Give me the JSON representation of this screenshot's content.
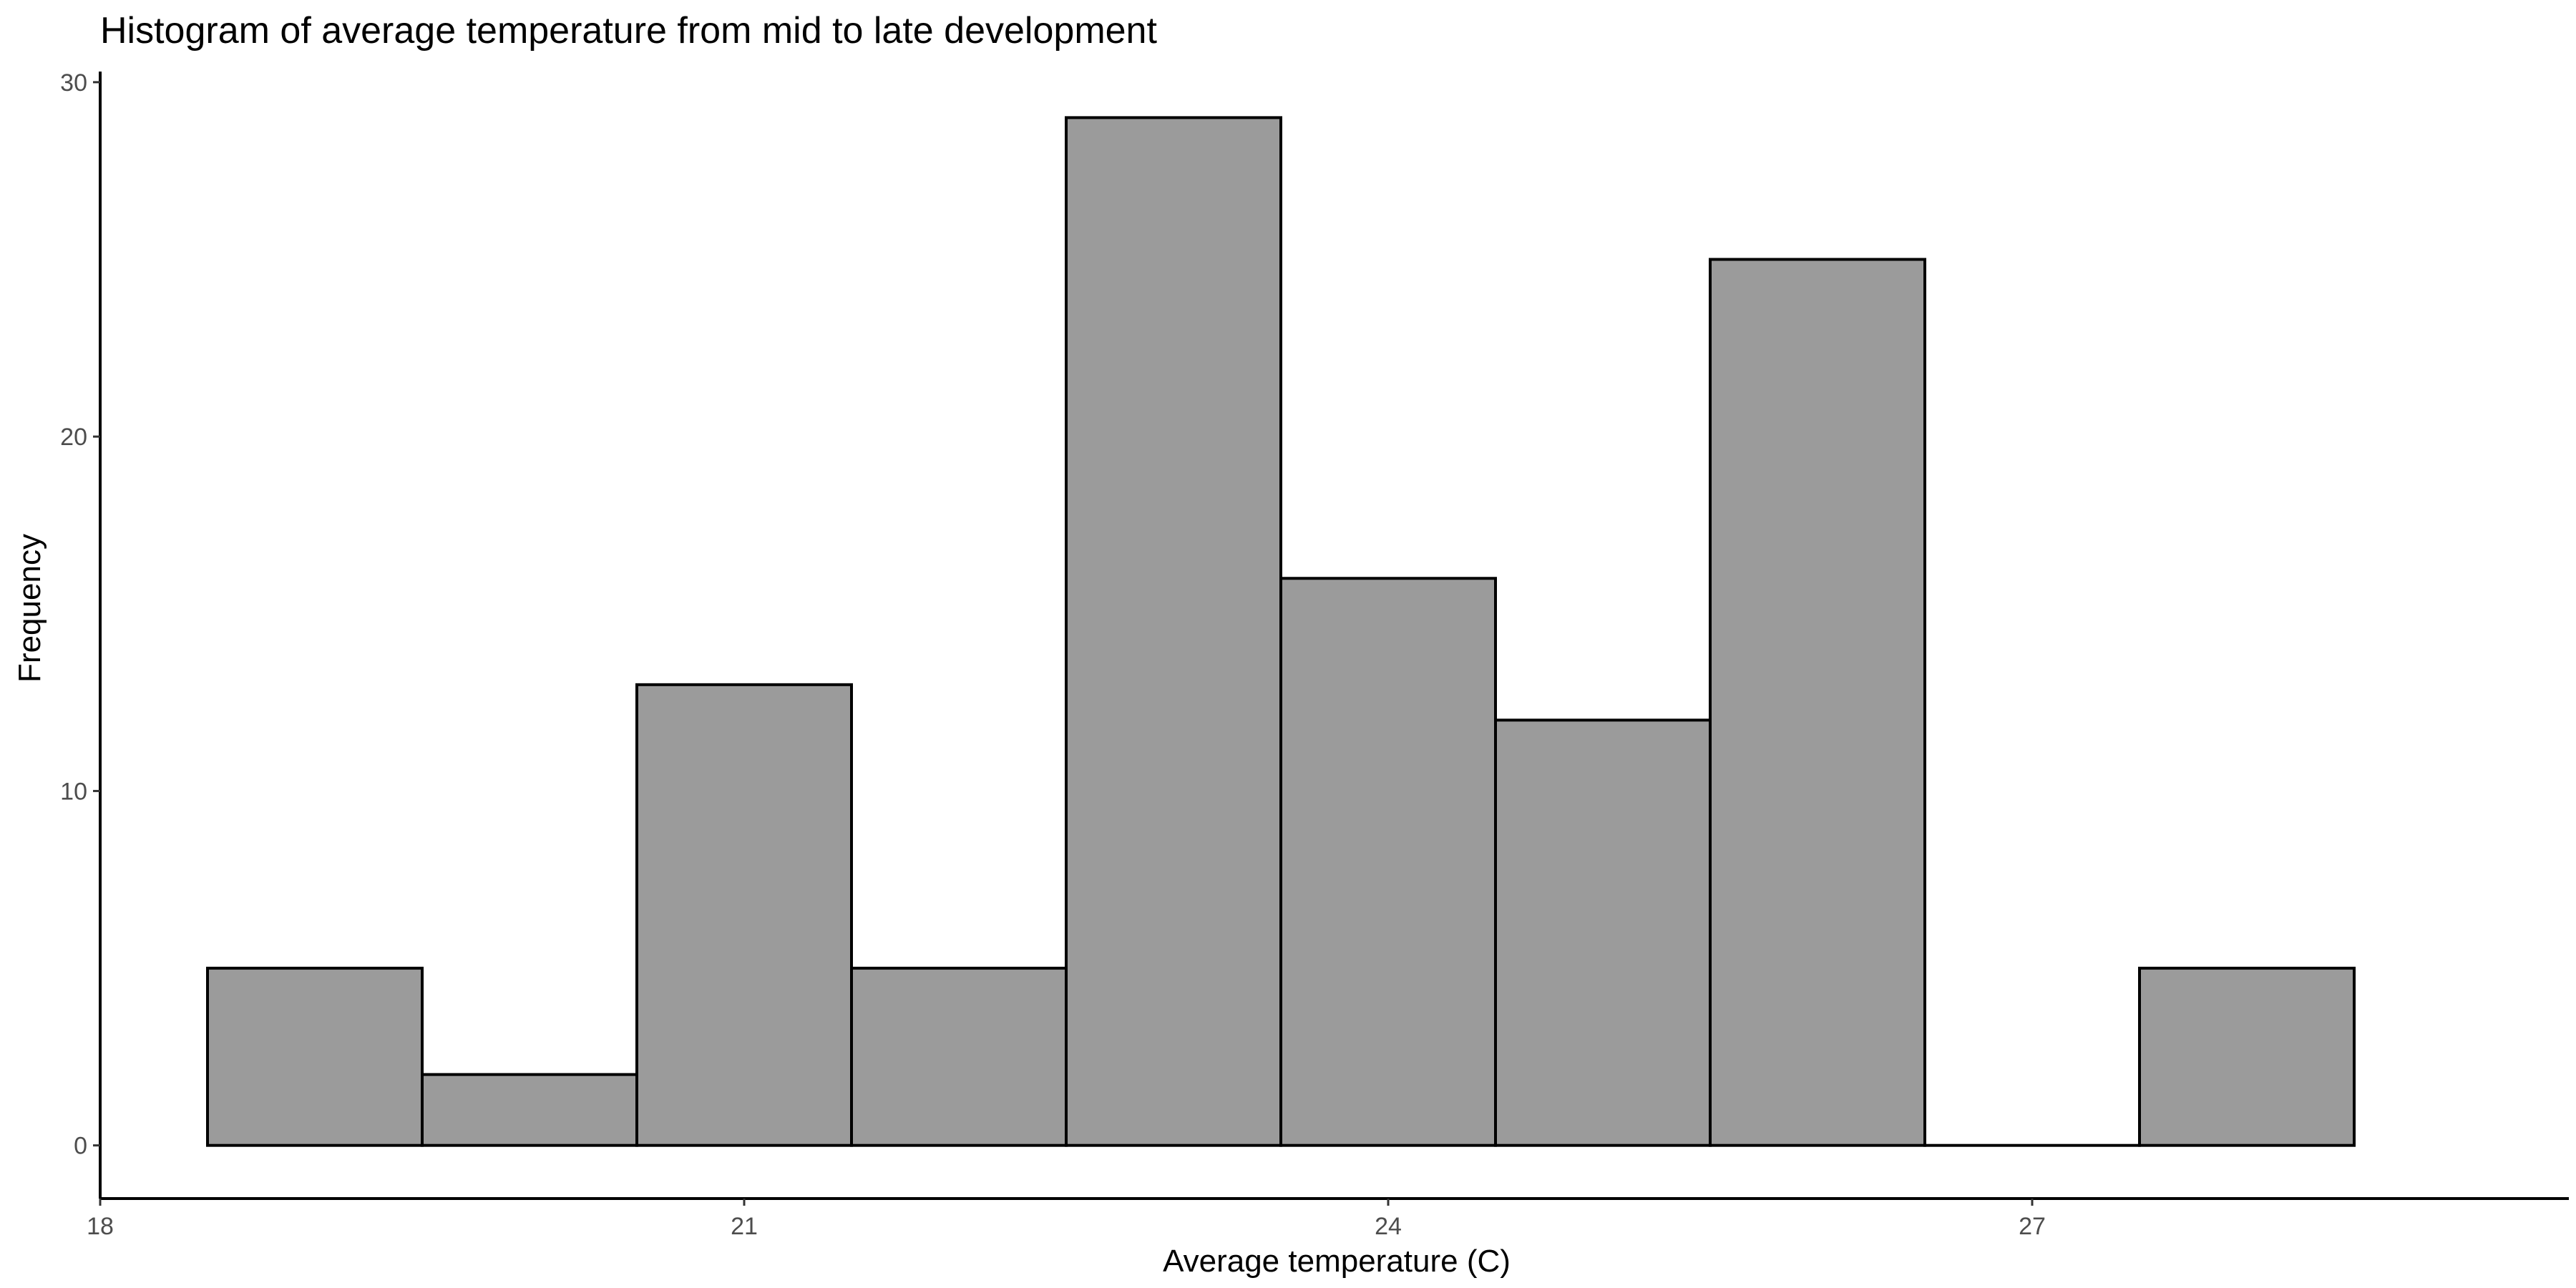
{
  "chart_data": {
    "type": "bar",
    "title": "Histogram of average temperature from mid to late development",
    "xlabel": "Average temperature (C)",
    "ylabel": "Frequency",
    "bin_width": 1,
    "bins": [
      {
        "start": 18.5,
        "end": 19.5,
        "count": 5
      },
      {
        "start": 19.5,
        "end": 20.5,
        "count": 2
      },
      {
        "start": 20.5,
        "end": 21.5,
        "count": 13
      },
      {
        "start": 21.5,
        "end": 22.5,
        "count": 5
      },
      {
        "start": 22.5,
        "end": 23.5,
        "count": 29
      },
      {
        "start": 23.5,
        "end": 24.5,
        "count": 16
      },
      {
        "start": 24.5,
        "end": 25.5,
        "count": 12
      },
      {
        "start": 25.5,
        "end": 26.5,
        "count": 25
      },
      {
        "start": 26.5,
        "end": 27.5,
        "count": 0
      },
      {
        "start": 27.5,
        "end": 28.5,
        "count": 5
      }
    ],
    "xlim": [
      18,
      29.5
    ],
    "ylim": [
      -1.5,
      30.3
    ],
    "xticks": [
      18,
      21,
      24,
      27
    ],
    "yticks": [
      0,
      10,
      20,
      30
    ],
    "grid": false,
    "colors": {
      "bar_fill": "#9b9b9b",
      "bar_outline": "#000000"
    }
  }
}
